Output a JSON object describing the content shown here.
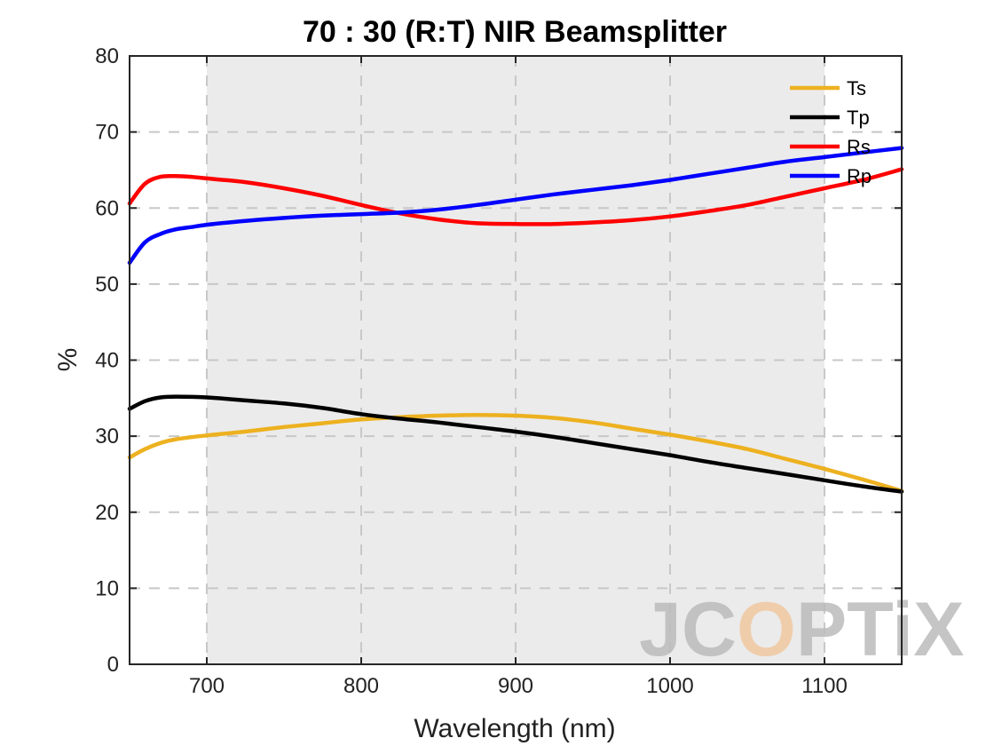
{
  "chart_data": {
    "type": "line",
    "title": "70 : 30 (R:T) NIR Beamsplitter",
    "xlabel": "Wavelength (nm)",
    "ylabel": "%",
    "xlim": [
      650,
      1150
    ],
    "ylim": [
      0,
      80
    ],
    "xticks": [
      700,
      800,
      900,
      1000,
      1100
    ],
    "yticks": [
      0,
      10,
      20,
      30,
      40,
      50,
      60,
      70,
      80
    ],
    "grid": true,
    "shaded_band": [
      700,
      1100
    ],
    "legend_position": "top-right",
    "series": [
      {
        "name": "Ts",
        "color": "#EDB120",
        "x": [
          650,
          660,
          670,
          680,
          700,
          725,
          750,
          775,
          800,
          825,
          850,
          875,
          900,
          925,
          950,
          975,
          1000,
          1025,
          1050,
          1075,
          1100,
          1125,
          1150
        ],
        "y": [
          27.2,
          28.3,
          29.1,
          29.6,
          30.1,
          30.6,
          31.2,
          31.7,
          32.2,
          32.5,
          32.7,
          32.8,
          32.7,
          32.4,
          31.8,
          31.0,
          30.2,
          29.3,
          28.3,
          27.0,
          25.7,
          24.3,
          22.8
        ]
      },
      {
        "name": "Tp",
        "color": "#000000",
        "x": [
          650,
          660,
          670,
          680,
          700,
          725,
          750,
          775,
          800,
          825,
          850,
          875,
          900,
          925,
          950,
          975,
          1000,
          1025,
          1050,
          1075,
          1100,
          1125,
          1150
        ],
        "y": [
          33.6,
          34.6,
          35.1,
          35.2,
          35.1,
          34.7,
          34.3,
          33.7,
          32.9,
          32.3,
          31.8,
          31.2,
          30.6,
          29.9,
          29.1,
          28.3,
          27.5,
          26.6,
          25.8,
          25.0,
          24.2,
          23.4,
          22.7
        ]
      },
      {
        "name": "Rs",
        "color": "#FF0000",
        "x": [
          650,
          660,
          670,
          680,
          690,
          700,
          725,
          750,
          775,
          800,
          825,
          850,
          875,
          900,
          925,
          950,
          975,
          1000,
          1025,
          1050,
          1075,
          1100,
          1125,
          1150
        ],
        "y": [
          60.6,
          63.2,
          64.1,
          64.2,
          64.1,
          63.9,
          63.4,
          62.6,
          61.6,
          60.4,
          59.3,
          58.5,
          58.0,
          57.9,
          57.9,
          58.1,
          58.4,
          58.9,
          59.6,
          60.4,
          61.5,
          62.6,
          63.7,
          65.1
        ]
      },
      {
        "name": "Rp",
        "color": "#0000FF",
        "x": [
          650,
          660,
          670,
          680,
          690,
          700,
          725,
          750,
          775,
          800,
          825,
          850,
          875,
          900,
          925,
          950,
          975,
          1000,
          1025,
          1050,
          1075,
          1100,
          1125,
          1150
        ],
        "y": [
          52.8,
          55.5,
          56.6,
          57.2,
          57.5,
          57.8,
          58.3,
          58.7,
          59.0,
          59.2,
          59.4,
          59.8,
          60.4,
          61.1,
          61.8,
          62.4,
          63.0,
          63.7,
          64.5,
          65.3,
          66.1,
          66.7,
          67.3,
          67.9
        ]
      }
    ]
  },
  "watermark": {
    "text_before": "JC",
    "text_highlight": "O",
    "text_after": "PTiX",
    "color": "#bcbcbc",
    "highlight_color": "#f0c8a0"
  }
}
